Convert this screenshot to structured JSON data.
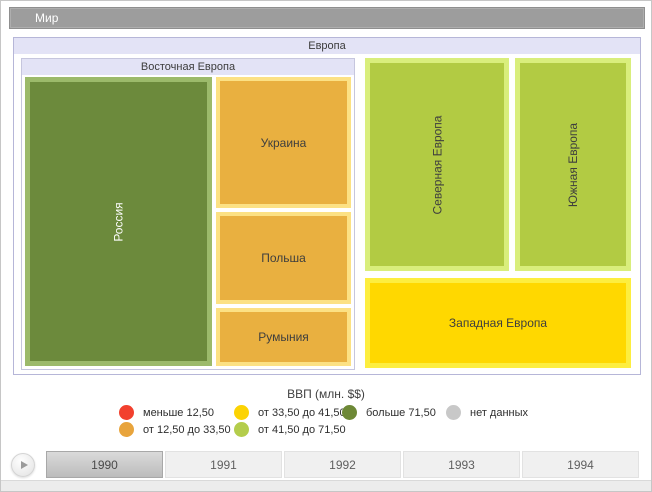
{
  "window": {
    "title": "Мир"
  },
  "chart_data": {
    "type": "treemap",
    "title": "Мир",
    "measure": "ВВП (млн. $$)",
    "year_displayed": "1990",
    "root_label": "Европа",
    "group_labels": {
      "eastern": "Восточная Европа"
    },
    "nodes": {
      "russia": {
        "label": "Россия",
        "parent": "Восточная Европа",
        "gdp_bin": "больше 71,50",
        "fill": "#6c8a3c",
        "border": "#9cba6b",
        "area_share_est": 0.32
      },
      "ukraine": {
        "label": "Украина",
        "parent": "Восточная Европа",
        "gdp_bin": "от 12,50 до 33,50",
        "fill": "#e9b040",
        "border": "#fce184",
        "area_share_est": 0.1
      },
      "poland": {
        "label": "Польша",
        "parent": "Восточная Европа",
        "gdp_bin": "от 12,50 до 33,50",
        "fill": "#e9b040",
        "border": "#fce184",
        "area_share_est": 0.07
      },
      "romania": {
        "label": "Румыния",
        "parent": "Восточная Европа",
        "gdp_bin": "от 12,50 до 33,50",
        "fill": "#e9b040",
        "border": "#fce184",
        "area_share_est": 0.05
      },
      "northern": {
        "label": "Северная Европа",
        "parent": "Европа",
        "gdp_bin": "от 41,50 до 71,50",
        "fill": "#b2cb43",
        "border": "#d9ee7c",
        "area_share_est": 0.18
      },
      "southern": {
        "label": "Южная Европа",
        "parent": "Европа",
        "gdp_bin": "от 41,50 до 71,50",
        "fill": "#b2cb43",
        "border": "#d9ee7c",
        "area_share_est": 0.14
      },
      "western": {
        "label": "Западная Европа",
        "parent": "Европа",
        "gdp_bin": "от 33,50 до 41,50",
        "fill": "#ffd800",
        "border": "#fdee3f",
        "area_share_est": 0.14
      }
    }
  },
  "legend": {
    "title": "ВВП (млн. $$)",
    "rows": [
      [
        {
          "label": "меньше 12,50",
          "color": "#f2402e"
        },
        {
          "label": "от 33,50 до 41,50",
          "color": "#fcd303"
        },
        {
          "label": "больше 71,50",
          "color": "#6d8836"
        },
        {
          "label": "нет данных",
          "color": "#c8c8c8"
        }
      ],
      [
        {
          "label": "от 12,50 до 33,50",
          "color": "#e8a43c"
        },
        {
          "label": "от 41,50 до 71,50",
          "color": "#b4cd4c"
        }
      ]
    ]
  },
  "timeline": {
    "years": [
      "1990",
      "1991",
      "1992",
      "1993",
      "1994"
    ],
    "selected_year": "1990"
  }
}
